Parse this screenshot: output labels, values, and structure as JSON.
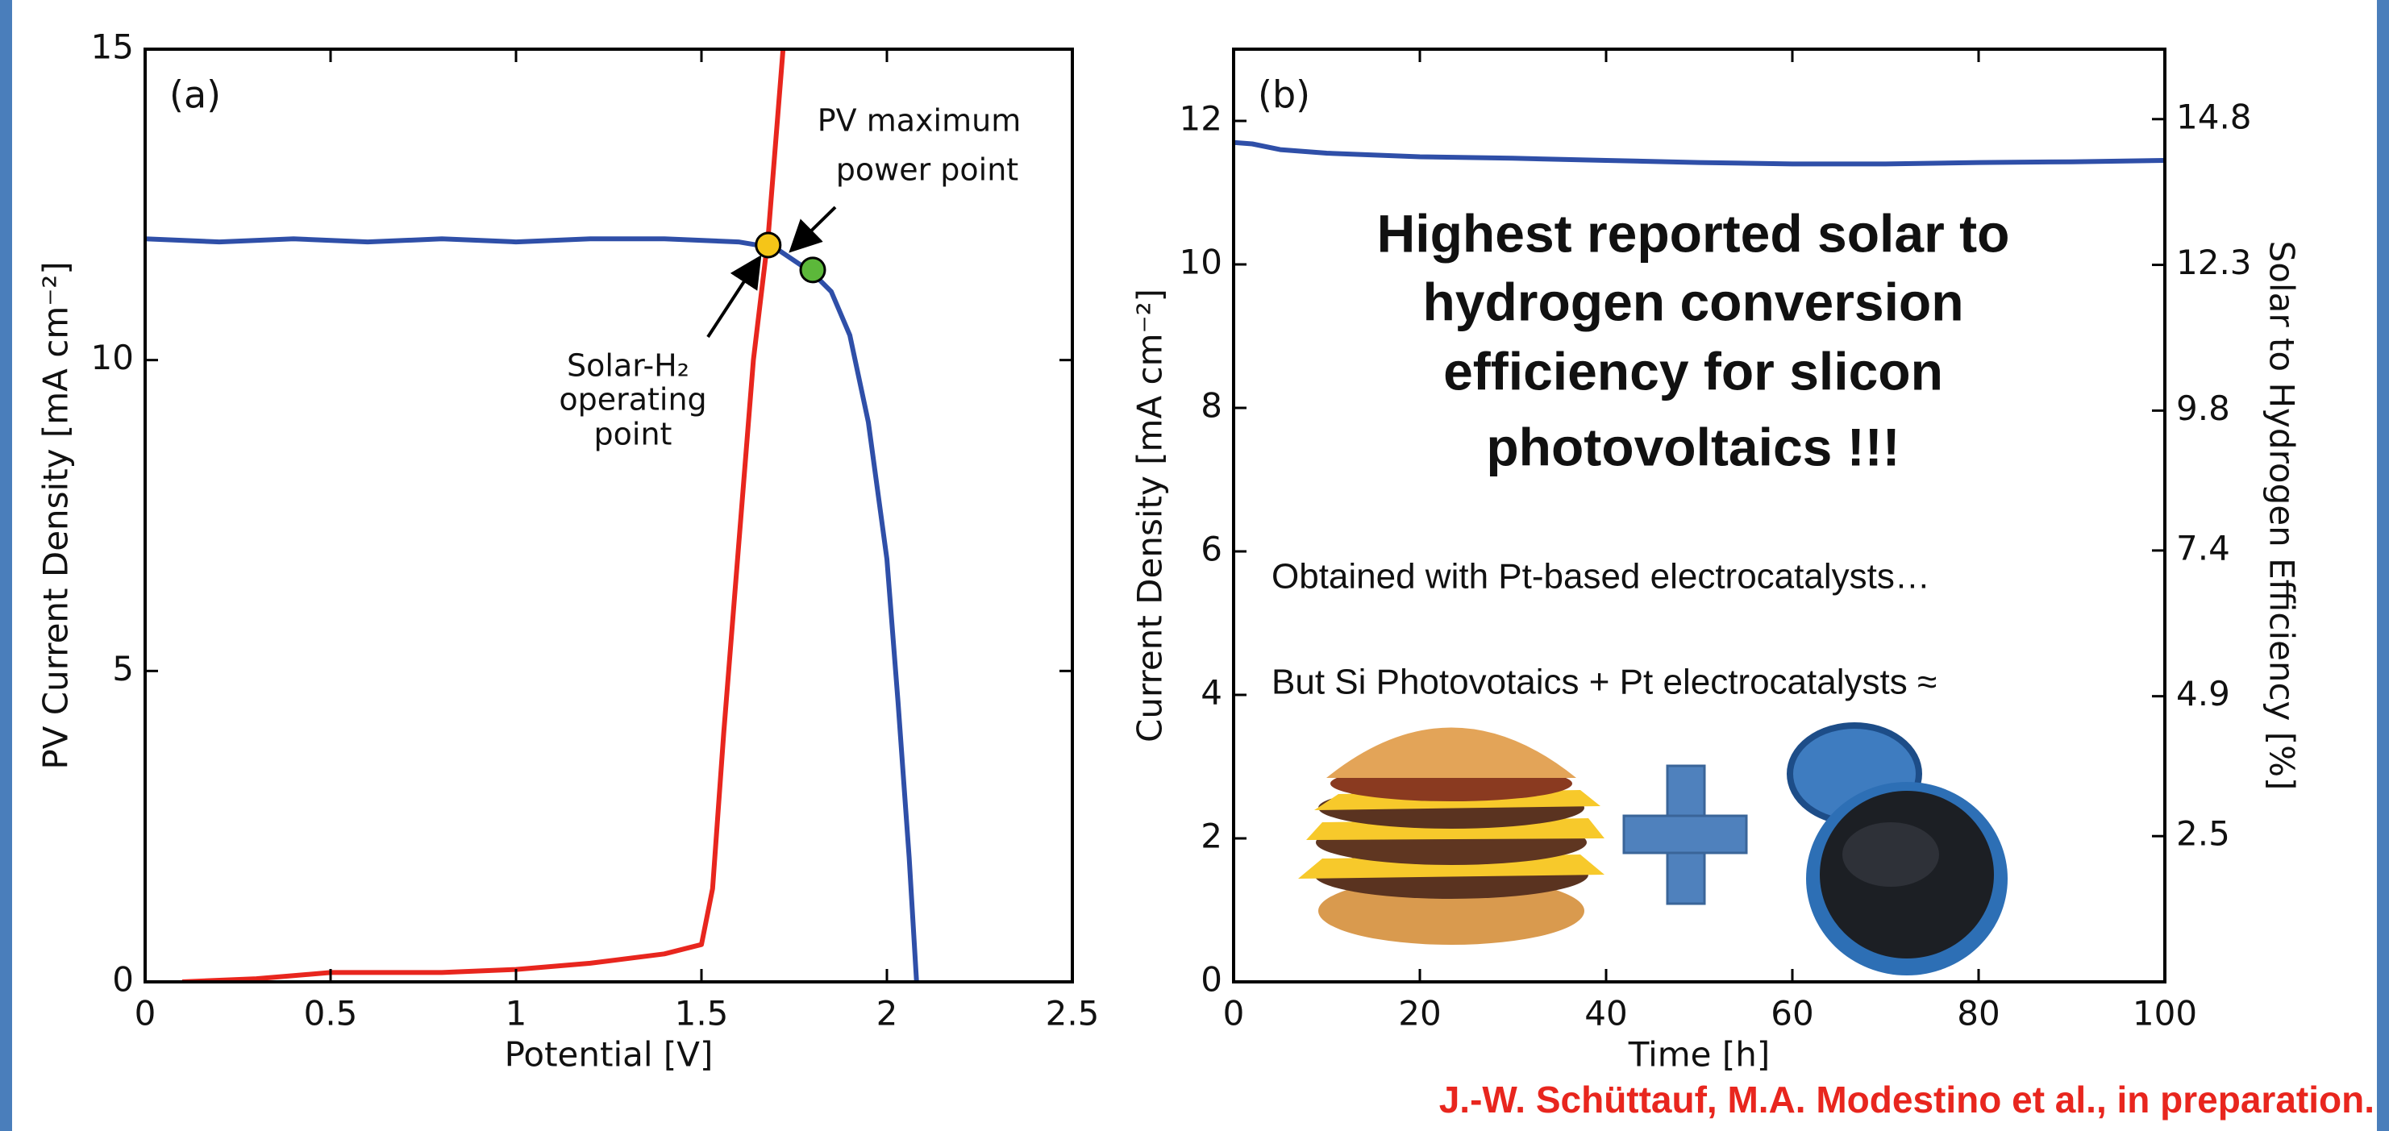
{
  "chart_data": [
    {
      "type": "line",
      "panel_label": "(a)",
      "xlabel": "Potential [V]",
      "ylabel": "PV Current Density [mA cm⁻²]",
      "xlim": [
        0,
        2.5
      ],
      "xticks": [
        0,
        0.5,
        1,
        1.5,
        2,
        2.5
      ],
      "ylim": [
        0,
        15
      ],
      "yticks": [
        0,
        5,
        10,
        15
      ],
      "series": [
        {
          "color": "#2f4fa8",
          "x": [
            0,
            0.2,
            0.4,
            0.6,
            0.8,
            1.0,
            1.2,
            1.4,
            1.6,
            1.7,
            1.75,
            1.8,
            1.85,
            1.9,
            1.95,
            2.0,
            2.03,
            2.06,
            2.08
          ],
          "values": [
            11.95,
            11.9,
            11.95,
            11.9,
            11.95,
            11.9,
            11.95,
            11.95,
            11.9,
            11.8,
            11.6,
            11.4,
            11.1,
            10.4,
            9.0,
            6.8,
            4.5,
            2.0,
            0
          ]
        },
        {
          "color": "#e8261e",
          "x": [
            0.1,
            0.3,
            0.5,
            0.8,
            1.0,
            1.2,
            1.4,
            1.5,
            1.53,
            1.56,
            1.6,
            1.64,
            1.68,
            1.7,
            1.72
          ],
          "values": [
            0,
            0.05,
            0.15,
            0.15,
            0.2,
            0.3,
            0.45,
            0.6,
            1.5,
            4,
            7,
            10,
            12,
            13.5,
            15
          ]
        }
      ],
      "points": [
        {
          "x": 1.68,
          "y": 11.85,
          "color": "#f5c518"
        },
        {
          "x": 1.8,
          "y": 11.45,
          "color": "#5cb83a"
        }
      ],
      "annotations": [
        "PV maximum",
        "power point",
        "Solar-H₂",
        "operating",
        "point"
      ]
    },
    {
      "type": "line",
      "panel_label": "(b)",
      "xlabel": "Time [h]",
      "ylabel": "Current Density [mA cm⁻²]",
      "y2label": "Solar to Hydrogen Efficiency [%]",
      "xlim": [
        0,
        100
      ],
      "xticks": [
        0,
        20,
        40,
        60,
        80,
        100
      ],
      "ylim": [
        0,
        13
      ],
      "yticks": [
        0,
        2,
        4,
        6,
        8,
        10,
        12
      ],
      "y2lim": [
        0,
        16
      ],
      "y2ticks": [
        2.5,
        4.9,
        7.4,
        9.8,
        12.3,
        14.8
      ],
      "series": [
        {
          "color": "#2f4fa8",
          "x": [
            0,
            2,
            5,
            10,
            20,
            30,
            40,
            50,
            60,
            70,
            80,
            90,
            100
          ],
          "values": [
            11.7,
            11.68,
            11.6,
            11.55,
            11.5,
            11.48,
            11.45,
            11.42,
            11.4,
            11.4,
            11.42,
            11.43,
            11.45
          ]
        }
      ],
      "annotations": [
        "Highest reported solar to",
        "hydrogen conversion",
        "efficiency for slicon",
        "photovoltaics !!!",
        "Obtained with Pt-based electrocatalysts…",
        "But Si Photovotaics + Pt electrocatalysts ≈"
      ]
    }
  ],
  "citation": "J.-W. Schüttauf, M.A. Modestino et al., in preparation."
}
